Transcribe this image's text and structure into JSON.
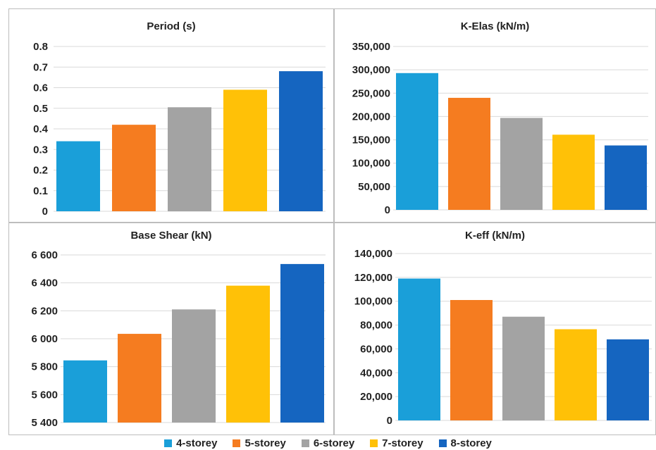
{
  "colors": {
    "series": [
      "#1a9fd9",
      "#f57c20",
      "#a3a3a3",
      "#ffc107",
      "#1565c0"
    ],
    "grid": "#d9d9d9",
    "panel_border": "#bdbdbd"
  },
  "legend": {
    "placement": "bottom",
    "entries": [
      "4-storey",
      "5-storey",
      "6-storey",
      "7-storey",
      "8-storey"
    ]
  },
  "chart_data": [
    {
      "type": "bar",
      "title": "Period (s)",
      "xlabel": "",
      "ylabel": "",
      "ylim": [
        0,
        0.8
      ],
      "ytick_labels": [
        "0",
        "0.1",
        "0.2",
        "0.3",
        "0.4",
        "0.5",
        "0.6",
        "0.7",
        "0.8"
      ],
      "grid": true,
      "categories": [
        "4-storey",
        "5-storey",
        "6-storey",
        "7-storey",
        "8-storey"
      ],
      "values": [
        0.34,
        0.42,
        0.505,
        0.59,
        0.68
      ]
    },
    {
      "type": "bar",
      "title": "K-Elas (kN/m)",
      "xlabel": "",
      "ylabel": "",
      "ylim": [
        0,
        350000
      ],
      "ytick_labels": [
        "0",
        "50,000",
        "100,000",
        "150,000",
        "200,000",
        "250,000",
        "300,000",
        "350,000"
      ],
      "grid": true,
      "categories": [
        "4-storey",
        "5-storey",
        "6-storey",
        "7-storey",
        "8-storey"
      ],
      "values": [
        293000,
        240000,
        197000,
        161000,
        138000
      ]
    },
    {
      "type": "bar",
      "title": "Base Shear (kN)",
      "xlabel": "",
      "ylabel": "",
      "ylim": [
        5400,
        6600
      ],
      "ytick_labels": [
        "5 400",
        "5 600",
        "5 800",
        "6 000",
        "6 200",
        "6 400",
        "6 600"
      ],
      "grid": true,
      "categories": [
        "4-storey",
        "5-storey",
        "6-storey",
        "7-storey",
        "8-storey"
      ],
      "values": [
        5845,
        6035,
        6210,
        6380,
        6535
      ]
    },
    {
      "type": "bar",
      "title": "K-eff (kN/m)",
      "xlabel": "",
      "ylabel": "",
      "ylim": [
        0,
        140000
      ],
      "ytick_labels": [
        "0",
        "20,000",
        "40,000",
        "60,000",
        "80,000",
        "100,000",
        "120,000",
        "140,000"
      ],
      "grid": true,
      "categories": [
        "4-storey",
        "5-storey",
        "6-storey",
        "7-storey",
        "8-storey"
      ],
      "values": [
        119000,
        101000,
        87000,
        76500,
        68000
      ]
    }
  ]
}
